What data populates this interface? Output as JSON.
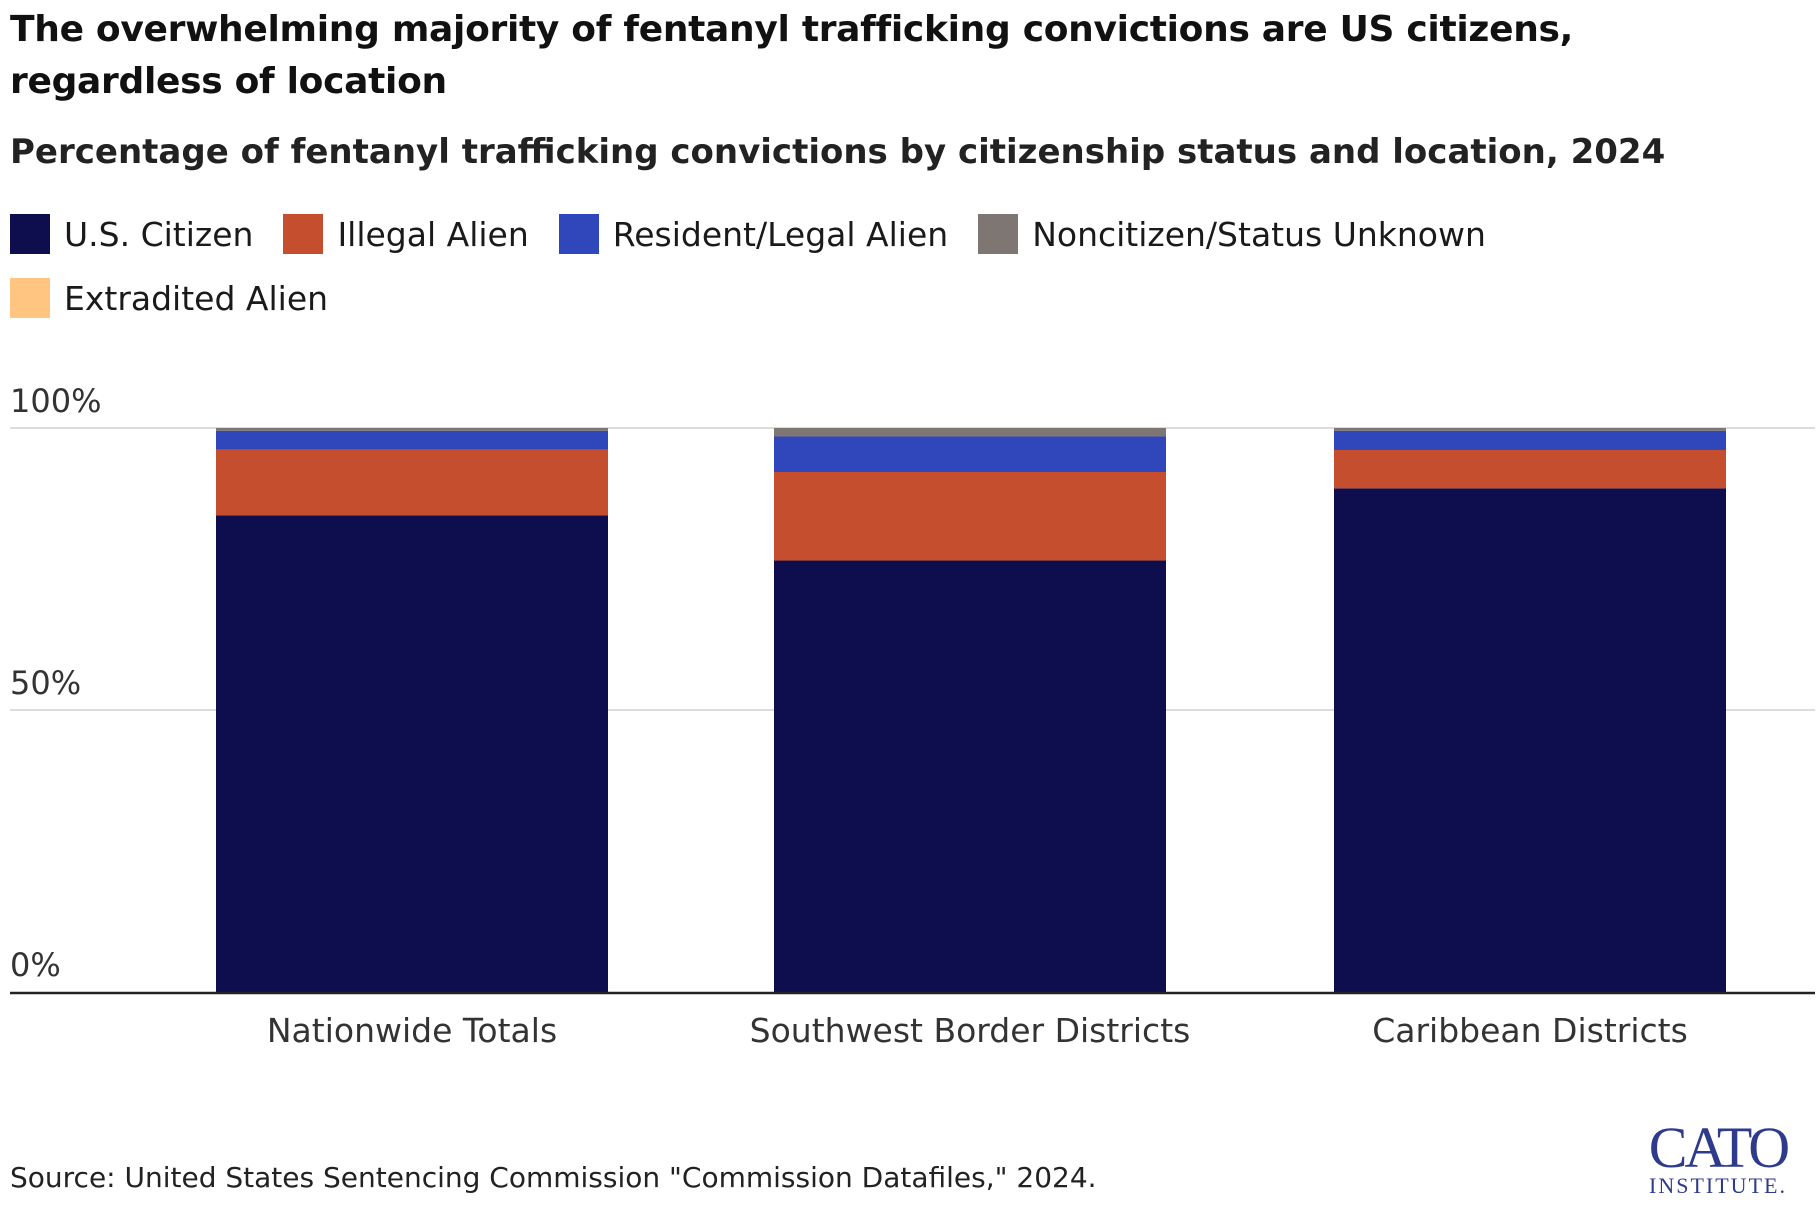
{
  "chart_data": {
    "type": "stacked-bar",
    "title": "The overwhelming majority of fentanyl trafficking convictions are US citizens, regardless of location",
    "subtitle": "Percentage of fentanyl trafficking convictions by citizenship status and location, 2024",
    "categories": [
      "Nationwide Totals",
      "Southwest Border Districts",
      "Caribbean Districts"
    ],
    "series": [
      {
        "name": "U.S. Citizen",
        "color": "#0e0e4e",
        "values": [
          84.5,
          76.5,
          89.3
        ]
      },
      {
        "name": "Illegal Alien",
        "color": "#c44e2e",
        "values": [
          11.7,
          15.7,
          6.8
        ]
      },
      {
        "name": "Resident/Legal Alien",
        "color": "#2f47bb",
        "values": [
          3.3,
          6.3,
          3.4
        ]
      },
      {
        "name": "Noncitizen/Status Unknown",
        "color": "#7d7673",
        "values": [
          0.5,
          1.5,
          0.5
        ]
      },
      {
        "name": "Extradited Alien",
        "color": "#ffc581",
        "values": [
          0.0,
          0.0,
          0.0
        ]
      }
    ],
    "ylim": [
      0,
      100
    ],
    "yticks": [
      0,
      50,
      100
    ],
    "ytick_labels": [
      "0%",
      "50%",
      "100%"
    ],
    "xlabel": "",
    "ylabel": "",
    "grid": true,
    "legend": "top-left"
  },
  "source": "Source: United States Sentencing Commission \"Commission Datafiles,\" 2024.",
  "logo": {
    "main": "CATO",
    "sub": "INSTITUTE."
  }
}
